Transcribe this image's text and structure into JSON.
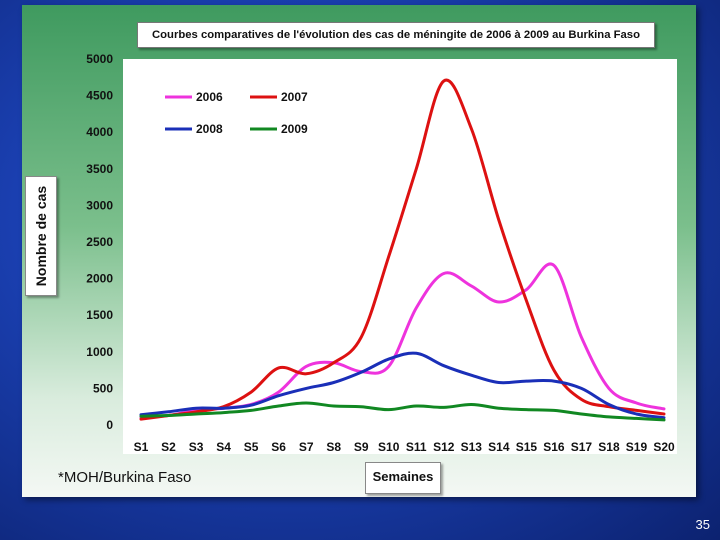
{
  "slide": {
    "number": "35"
  },
  "source_note": "*MOH/Burkina Faso",
  "colors": {
    "2006": "#ee33dd",
    "2007": "#dd1111",
    "2008": "#1a2fb8",
    "2009": "#118822"
  },
  "chart_data": {
    "type": "line",
    "title": "Courbes comparatives de l'évolution des cas de méningite de 2006 à 2009 au Burkina Faso",
    "xlabel": "Semaines",
    "ylabel": "Nombre de cas",
    "ylim": [
      0,
      5000
    ],
    "yticks": [
      "0",
      "500",
      "1000",
      "1500",
      "2000",
      "2500",
      "3000",
      "3500",
      "4000",
      "4500",
      "5000"
    ],
    "grid": false,
    "legend": "top-left",
    "categories": [
      "S1",
      "S2",
      "S3",
      "S4",
      "S5",
      "S6",
      "S7",
      "S8",
      "S9",
      "S10",
      "S11",
      "S12",
      "S13",
      "S14",
      "S15",
      "S16",
      "S17",
      "S18",
      "S19",
      "S20"
    ],
    "series": [
      {
        "name": "2006",
        "values": [
          100,
          130,
          200,
          230,
          280,
          450,
          800,
          850,
          730,
          800,
          1600,
          2070,
          1900,
          1680,
          1850,
          2180,
          1200,
          500,
          300,
          220
        ]
      },
      {
        "name": "2007",
        "values": [
          80,
          130,
          180,
          250,
          450,
          780,
          700,
          850,
          1200,
          2300,
          3500,
          4700,
          4050,
          2800,
          1700,
          750,
          350,
          250,
          200,
          150
        ]
      },
      {
        "name": "2008",
        "values": [
          140,
          180,
          230,
          230,
          270,
          400,
          500,
          580,
          720,
          900,
          980,
          810,
          680,
          580,
          600,
          600,
          500,
          280,
          150,
          100
        ]
      },
      {
        "name": "2009",
        "values": [
          120,
          130,
          150,
          170,
          200,
          260,
          300,
          260,
          250,
          210,
          260,
          240,
          280,
          230,
          210,
          200,
          150,
          110,
          90,
          70
        ]
      }
    ]
  }
}
